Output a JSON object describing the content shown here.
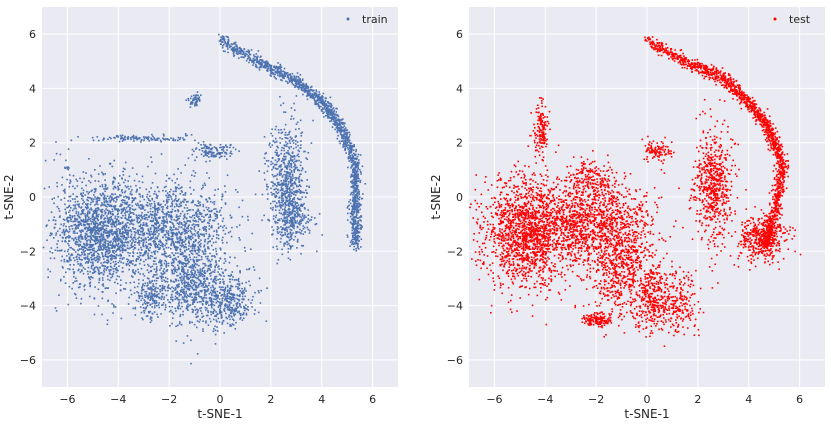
{
  "chart_data": [
    {
      "type": "scatter",
      "style": "seaborn-darkgrid",
      "background": "#eaeaf2",
      "grid": true,
      "legend_position": "top-right",
      "xlabel": "t-SNE-1",
      "ylabel": "t-SNE-2",
      "xlim": [
        -7,
        7
      ],
      "ylim": [
        -7,
        7
      ],
      "xticks": [
        -6,
        -4,
        -2,
        0,
        2,
        4,
        6
      ],
      "yticks": [
        -6,
        -4,
        -2,
        0,
        2,
        4,
        6
      ],
      "series": [
        {
          "name": "train",
          "color": "#4c72b0",
          "clusters": [
            {
              "cx": -4.7,
              "cy": -1.3,
              "sx": 0.9,
              "sy": 1.0,
              "n": 1600
            },
            {
              "cx": -2.0,
              "cy": -1.0,
              "sx": 1.1,
              "sy": 0.8,
              "n": 1100
            },
            {
              "cx": -1.2,
              "cy": -3.0,
              "sx": 0.7,
              "sy": 0.8,
              "n": 700
            },
            {
              "cx": 0.3,
              "cy": -3.8,
              "sx": 0.6,
              "sy": 0.5,
              "n": 400
            },
            {
              "cx": -2.8,
              "cy": -3.6,
              "sx": 0.3,
              "sy": 0.5,
              "n": 200
            },
            {
              "cx": 2.6,
              "cy": 0.6,
              "sx": 0.35,
              "sy": 1.1,
              "n": 600
            },
            {
              "cx": 2.8,
              "cy": -0.8,
              "sx": 0.4,
              "sy": 0.5,
              "n": 250
            },
            {
              "cx": -1.0,
              "cy": 3.6,
              "sx": 0.12,
              "sy": 0.12,
              "n": 60
            },
            {
              "cx": -0.3,
              "cy": 1.7,
              "sx": 0.4,
              "sy": 0.15,
              "n": 120
            },
            {
              "cx": -3.0,
              "cy": 2.2,
              "sx": 1.0,
              "sy": 0.06,
              "n": 120
            },
            {
              "cx": -6.0,
              "cy": 0.0,
              "sx": 0.4,
              "sy": 1.4,
              "n": 40
            }
          ],
          "curves": [
            {
              "points": [
                [
                  0,
                  5.8
                ],
                [
                  1.5,
                  5.0
                ],
                [
                  3.0,
                  4.3
                ],
                [
                  4.0,
                  3.5
                ],
                [
                  4.8,
                  2.5
                ],
                [
                  5.3,
                  1.2
                ],
                [
                  5.3,
                  -0.3
                ],
                [
                  5.3,
                  -1.8
                ]
              ],
              "spread": 0.22,
              "n": 1500
            }
          ]
        },
        {
          "name": "test",
          "color": "#ff0000",
          "clusters": [
            {
              "cx": -4.7,
              "cy": -1.3,
              "sx": 0.9,
              "sy": 1.0,
              "n": 1600
            },
            {
              "cx": -2.0,
              "cy": -1.0,
              "sx": 1.1,
              "sy": 0.8,
              "n": 1100
            },
            {
              "cx": -1.0,
              "cy": -2.8,
              "sx": 0.6,
              "sy": 0.8,
              "n": 500
            },
            {
              "cx": 0.2,
              "cy": -3.8,
              "sx": 0.4,
              "sy": 0.6,
              "n": 300
            },
            {
              "cx": -2.0,
              "cy": -4.5,
              "sx": 0.25,
              "sy": 0.12,
              "n": 150
            },
            {
              "cx": 2.6,
              "cy": 0.5,
              "sx": 0.4,
              "sy": 1.0,
              "n": 600
            },
            {
              "cx": 4.5,
              "cy": -1.5,
              "sx": 0.5,
              "sy": 0.4,
              "n": 400
            },
            {
              "cx": -4.2,
              "cy": 2.5,
              "sx": 0.15,
              "sy": 0.5,
              "n": 150
            },
            {
              "cx": 0.4,
              "cy": 1.7,
              "sx": 0.3,
              "sy": 0.2,
              "n": 100
            },
            {
              "cx": -2.3,
              "cy": 0.6,
              "sx": 0.5,
              "sy": 0.4,
              "n": 200
            },
            {
              "cx": 1.2,
              "cy": -3.9,
              "sx": 0.4,
              "sy": 0.6,
              "n": 200
            }
          ],
          "curves": [
            {
              "points": [
                [
                  0,
                  5.8
                ],
                [
                  1.5,
                  5.0
                ],
                [
                  3.0,
                  4.4
                ],
                [
                  4.0,
                  3.5
                ],
                [
                  4.8,
                  2.5
                ],
                [
                  5.3,
                  1.2
                ],
                [
                  5.0,
                  -0.5
                ],
                [
                  4.6,
                  -1.8
                ]
              ],
              "spread": 0.22,
              "n": 1500
            }
          ]
        }
      ]
    }
  ]
}
